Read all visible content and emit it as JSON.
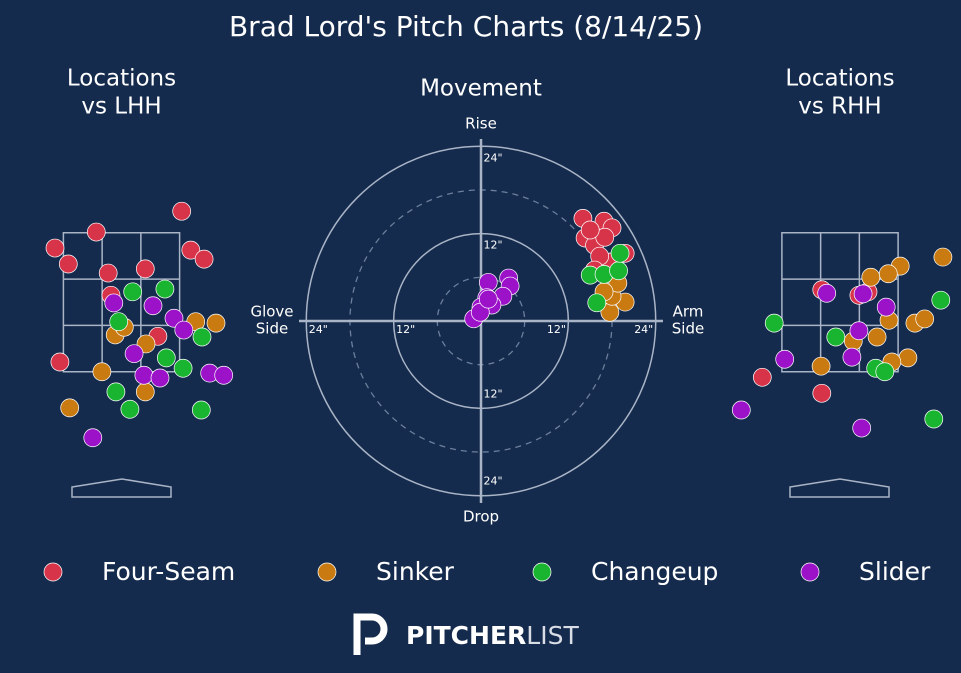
{
  "title": "Brad Lord's Pitch Charts (8/14/25)",
  "chart_data": [
    {
      "type": "location",
      "title_lines": [
        "Locations",
        "vs LHH"
      ],
      "xlim": [
        -1.5,
        1.5
      ],
      "ylim": [
        0,
        5
      ],
      "zone": {
        "x": [
          -0.83,
          0.83
        ],
        "y": [
          1.5,
          3.5
        ]
      },
      "series": [
        {
          "color": "#d7344a",
          "x": [
            0.86,
            -0.95,
            -0.36,
            -0.76,
            -0.19,
            0.34,
            0.99,
            1.18,
            -0.15,
            0.52,
            -0.88
          ],
          "y": [
            3.81,
            3.28,
            3.51,
            3.05,
            2.92,
            2.98,
            3.25,
            3.12,
            2.6,
            2.01,
            1.64
          ]
        },
        {
          "color": "#c97a10",
          "x": [
            -0.74,
            -0.28,
            0.34,
            -0.09,
            0.04,
            0.35,
            1.06,
            1.35
          ],
          "y": [
            0.98,
            1.5,
            1.21,
            2.03,
            2.14,
            1.9,
            2.22,
            2.2
          ]
        },
        {
          "color": "#19b531",
          "x": [
            0.16,
            0.62,
            -0.08,
            0.12,
            1.14,
            0.88,
            0.64,
            1.15,
            -0.04
          ],
          "y": [
            2.65,
            2.69,
            1.21,
            0.96,
            0.95,
            1.55,
            1.7,
            2.0,
            2.22
          ]
        },
        {
          "color": "#9b12c9",
          "x": [
            -0.41,
            -0.11,
            0.45,
            0.75,
            0.89,
            0.18,
            0.32,
            0.55,
            1.26,
            1.46
          ],
          "y": [
            0.55,
            2.49,
            2.45,
            2.27,
            2.1,
            1.76,
            1.45,
            1.41,
            1.48,
            1.45
          ]
        }
      ]
    },
    {
      "type": "movement",
      "title": "Movement",
      "top_label": "Rise",
      "bottom_label": "Drop",
      "left_label": [
        "Glove",
        "Side"
      ],
      "right_label": [
        "Arm",
        "Side"
      ],
      "xlim": [
        -25,
        25
      ],
      "ylim": [
        -25,
        25
      ],
      "rings": [
        {
          "value": 12,
          "label": "12\""
        },
        {
          "value": 24,
          "label": "24\""
        }
      ],
      "dashed_rings": [
        6,
        18
      ],
      "series": [
        {
          "name": "Four-Seam",
          "color": "#d7344a",
          "x": [
            14.0,
            16.9,
            18.0,
            14.3,
            15.6,
            17.0,
            17.8,
            16.3,
            19.8,
            15.6,
            15.0
          ],
          "y": [
            14.1,
            13.7,
            12.8,
            11.4,
            10.4,
            11.5,
            8.1,
            8.9,
            9.3,
            7.0,
            12.5
          ]
        },
        {
          "name": "Sinker",
          "color": "#c97a10",
          "x": [
            17.7,
            19.8,
            18.0,
            18.8,
            16.9
          ],
          "y": [
            1.2,
            2.6,
            3.4,
            5.2,
            4.0
          ]
        },
        {
          "name": "Changeup",
          "color": "#19b531",
          "x": [
            15.0,
            16.9,
            18.9,
            15.9,
            19.1
          ],
          "y": [
            6.3,
            6.4,
            6.9,
            2.5,
            9.3
          ]
        },
        {
          "name": "Slider",
          "color": "#9b12c9",
          "x": [
            1.0,
            3.8,
            4.0,
            -1.0,
            0.8,
            3.0,
            0.0,
            1.5,
            -0.1,
            1.0
          ],
          "y": [
            5.3,
            5.9,
            4.8,
            0.3,
            3.2,
            3.4,
            1.9,
            2.2,
            1.2,
            3.0
          ]
        }
      ]
    },
    {
      "type": "location",
      "title_lines": [
        "Locations",
        "vs RHH"
      ],
      "xlim": [
        -1.5,
        1.5
      ],
      "ylim": [
        0,
        5
      ],
      "zone": {
        "x": [
          -0.83,
          0.83
        ],
        "y": [
          1.5,
          3.5
        ]
      },
      "series": [
        {
          "color": "#d7344a",
          "x": [
            -0.26,
            0.4,
            -1.11,
            -0.26,
            0.27
          ],
          "y": [
            2.68,
            2.65,
            1.42,
            1.19,
            2.6
          ]
        },
        {
          "color": "#c97a10",
          "x": [
            0.44,
            0.86,
            0.69,
            1.47,
            0.7,
            1.07,
            1.21,
            0.53,
            0.19,
            0.97,
            0.74,
            -0.27
          ],
          "y": [
            2.86,
            3.02,
            2.91,
            3.15,
            2.24,
            2.2,
            2.26,
            2.0,
            1.94,
            1.7,
            1.64,
            1.58
          ]
        },
        {
          "color": "#19b531",
          "x": [
            -0.94,
            -0.06,
            0.51,
            0.64,
            1.34,
            1.44
          ],
          "y": [
            2.2,
            2.0,
            1.55,
            1.5,
            0.82,
            2.53
          ]
        },
        {
          "color": "#9b12c9",
          "x": [
            -0.19,
            0.33,
            0.66,
            0.27,
            0.17,
            -0.79,
            -1.41,
            0.31
          ],
          "y": [
            2.63,
            2.62,
            2.43,
            2.09,
            1.71,
            1.68,
            0.95,
            0.69
          ]
        }
      ]
    }
  ],
  "logo": {
    "bold": "PITCHER",
    "light": "LIST"
  }
}
